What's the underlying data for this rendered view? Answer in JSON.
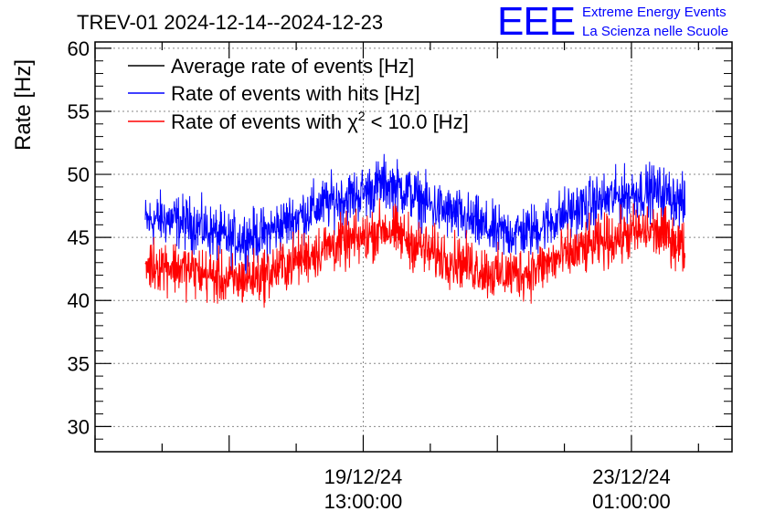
{
  "logo": {
    "mark": "EEE",
    "line1": "Extreme Energy Events",
    "line2": "La Scienza nelle Scuole",
    "color": "#0000ff"
  },
  "chart_data": {
    "type": "line",
    "title": "TREV-01 2024-12-14--2024-12-23",
    "ylabel": "Rate [Hz]",
    "xlabel": "",
    "ylim": [
      28,
      60.5
    ],
    "yticks": [
      30,
      35,
      40,
      45,
      50,
      55,
      60
    ],
    "xlim": [
      0,
      9.5
    ],
    "xticks": [
      {
        "x": 4.0,
        "line1": "19/12/24",
        "line2": "13:00:00"
      },
      {
        "x": 8.0,
        "line1": "23/12/24",
        "line2": "01:00:00"
      }
    ],
    "x_data_range": [
      0.75,
      8.8
    ],
    "grid": true,
    "legend_position": "top-left",
    "series": [
      {
        "name": "Average rate of events [Hz]",
        "color": "#000000",
        "values": []
      },
      {
        "name": "Rate of events with hits [Hz]",
        "color": "#0000ff",
        "baseline_x": [
          0.75,
          1.0,
          1.5,
          2.0,
          2.5,
          3.0,
          3.5,
          4.0,
          4.3,
          4.6,
          5.0,
          5.5,
          6.0,
          6.5,
          7.0,
          7.5,
          8.0,
          8.3,
          8.6,
          8.8
        ],
        "baseline_y": [
          46.2,
          46.5,
          46.0,
          44.8,
          45.2,
          46.6,
          47.8,
          48.5,
          49.3,
          48.8,
          47.5,
          46.5,
          45.3,
          45.5,
          46.8,
          47.8,
          48.5,
          48.7,
          48.3,
          47.5
        ],
        "spread": 1.9
      },
      {
        "name": "Rate of events with χ² < 10.0 [Hz]",
        "legend_parts": {
          "pre": "Rate of events with χ",
          "sup": "2",
          "post": " < 10.0 [Hz]"
        },
        "color": "#ff0000",
        "baseline_x": [
          0.75,
          1.0,
          1.5,
          2.0,
          2.5,
          3.0,
          3.5,
          4.0,
          4.3,
          4.6,
          5.0,
          5.5,
          6.0,
          6.5,
          7.0,
          7.5,
          8.0,
          8.3,
          8.6,
          8.8
        ],
        "baseline_y": [
          42.8,
          42.9,
          42.3,
          41.5,
          42.0,
          43.2,
          44.3,
          44.9,
          45.8,
          45.0,
          43.8,
          43.0,
          42.0,
          42.3,
          43.5,
          44.5,
          45.3,
          45.5,
          45.0,
          44.0
        ],
        "spread": 1.9
      }
    ]
  }
}
